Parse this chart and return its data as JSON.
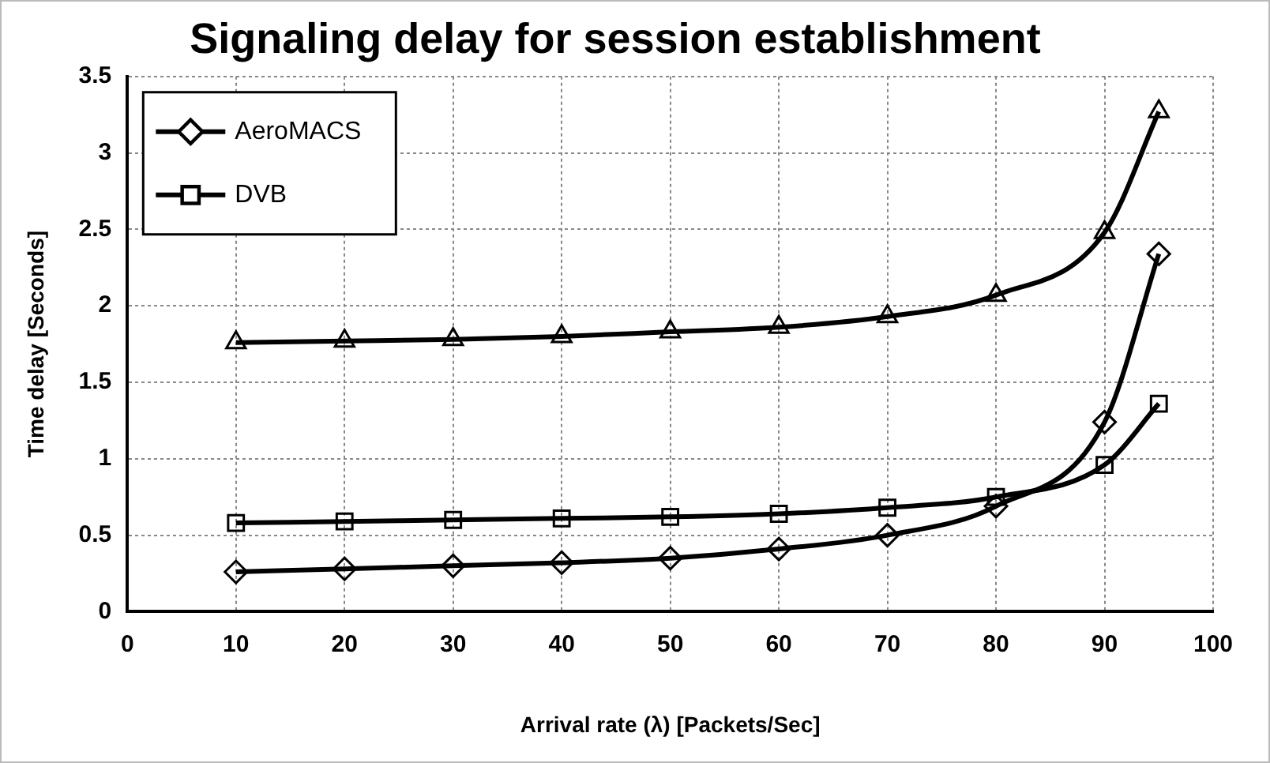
{
  "chart_data": {
    "type": "line",
    "title": "Signaling delay for session establishment",
    "xlabel": "Arrival rate (λ) [Packets/Sec]",
    "ylabel": "Time delay [Seconds]",
    "x": [
      10,
      20,
      30,
      40,
      50,
      60,
      70,
      80,
      90,
      95
    ],
    "series": [
      {
        "name": "AeroMACS",
        "color": "#000000",
        "marker": "diamond",
        "values": [
          0.26,
          0.28,
          0.3,
          0.32,
          0.35,
          0.41,
          0.5,
          0.69,
          1.24,
          2.34
        ]
      },
      {
        "name": "DVB",
        "color": "#000000",
        "marker": "square",
        "values": [
          0.58,
          0.59,
          0.6,
          0.61,
          0.62,
          0.64,
          0.68,
          0.75,
          0.96,
          1.36
        ]
      },
      {
        "color": "#000000",
        "marker": "triangle",
        "values": [
          1.76,
          1.77,
          1.78,
          1.8,
          1.83,
          1.86,
          1.93,
          2.07,
          2.48,
          3.27
        ]
      }
    ],
    "xlim": [
      0,
      100
    ],
    "xticks": [
      0,
      10,
      20,
      30,
      40,
      50,
      60,
      70,
      80,
      90,
      100
    ],
    "ylim": [
      0,
      3.5
    ],
    "yticks": [
      0,
      0.5,
      1,
      1.5,
      2,
      2.5,
      3,
      3.5
    ],
    "grid": true,
    "legend": "top left",
    "line_style": "solid"
  }
}
